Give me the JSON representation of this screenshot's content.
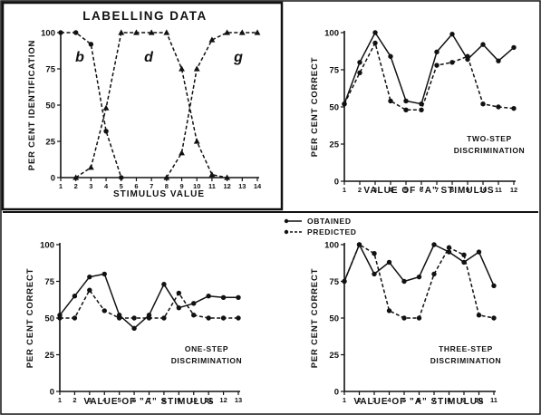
{
  "chart_data": [
    {
      "type": "line",
      "title": "LABELLING DATA",
      "xlabel": "STIMULUS VALUE",
      "ylabel": "PER CENT IDENTIFICATION",
      "x": [
        1,
        2,
        3,
        4,
        5,
        6,
        7,
        8,
        9,
        10,
        11,
        12,
        13,
        14
      ],
      "xticks": [
        "1",
        "2",
        "3",
        "4",
        "5",
        "6",
        "7",
        "8",
        "9",
        "10",
        "11",
        "12",
        "13",
        "14"
      ],
      "yticks": [
        "0",
        "25",
        "50",
        "75",
        "100"
      ],
      "xlim": [
        1,
        14
      ],
      "ylim": [
        0,
        100
      ],
      "regions": [
        "b",
        "d",
        "g"
      ],
      "series": [
        {
          "name": "b",
          "marker": "circle",
          "dash": "dashed",
          "points": [
            [
              1,
              100
            ],
            [
              2,
              100
            ],
            [
              3,
              92
            ],
            [
              4,
              32
            ],
            [
              5,
              0
            ]
          ]
        },
        {
          "name": "d",
          "marker": "triangle",
          "dash": "dashed",
          "points": [
            [
              2,
              0
            ],
            [
              3,
              7
            ],
            [
              4,
              48
            ],
            [
              5,
              100
            ],
            [
              6,
              100
            ],
            [
              7,
              100
            ],
            [
              8,
              100
            ],
            [
              9,
              75
            ],
            [
              10,
              25
            ],
            [
              11,
              2
            ],
            [
              12,
              0
            ]
          ]
        },
        {
          "name": "g",
          "marker": "triangle",
          "dash": "dashed",
          "points": [
            [
              8,
              0
            ],
            [
              9,
              17
            ],
            [
              10,
              75
            ],
            [
              11,
              95
            ],
            [
              12,
              100
            ],
            [
              13,
              100
            ],
            [
              14,
              100
            ]
          ]
        }
      ]
    },
    {
      "type": "line",
      "subtitle": "TWO-STEP DISCRIMINATION",
      "xlabel": "VALUE OF \"A\" STIMULUS",
      "ylabel": "PER CENT CORRECT",
      "x": [
        1,
        2,
        3,
        4,
        5,
        6,
        7,
        8,
        9,
        10,
        11,
        12
      ],
      "xticks": [
        "1",
        "2",
        "3",
        "4",
        "5",
        "6",
        "7",
        "8",
        "9",
        "10",
        "11",
        "12"
      ],
      "yticks": [
        "0",
        "25",
        "50",
        "75",
        "100"
      ],
      "xlim": [
        1,
        12
      ],
      "ylim": [
        0,
        100
      ],
      "series": [
        {
          "name": "OBTAINED",
          "values": [
            52,
            80,
            100,
            84,
            54,
            52,
            87,
            99,
            82,
            92,
            81,
            90
          ]
        },
        {
          "name": "PREDICTED",
          "values": [
            52,
            73,
            93,
            54,
            48,
            48,
            78,
            80,
            84,
            52,
            50,
            49
          ]
        }
      ]
    },
    {
      "type": "line",
      "subtitle": "ONE-STEP DISCRIMINATION",
      "xlabel": "VALUE OF \"A\" STIMULUS",
      "ylabel": "PER CENT CORRECT",
      "x": [
        1,
        2,
        3,
        4,
        5,
        6,
        7,
        8,
        9,
        10,
        11,
        12,
        13
      ],
      "xticks": [
        "1",
        "2",
        "3",
        "4",
        "5",
        "6",
        "7",
        "8",
        "9",
        "10",
        "11",
        "12",
        "13"
      ],
      "yticks": [
        "0",
        "25",
        "50",
        "75",
        "100"
      ],
      "xlim": [
        1,
        13
      ],
      "ylim": [
        0,
        100
      ],
      "series": [
        {
          "name": "OBTAINED",
          "values": [
            52,
            65,
            78,
            80,
            52,
            43,
            52,
            73,
            57,
            60,
            65,
            64,
            64
          ]
        },
        {
          "name": "PREDICTED",
          "values": [
            50,
            50,
            69,
            55,
            50,
            50,
            50,
            50,
            67,
            52,
            50,
            50,
            50
          ]
        }
      ]
    },
    {
      "type": "line",
      "subtitle": "THREE-STEP DISCRIMINATION",
      "xlabel": "VALUE OF \"A\" STIMULUS",
      "ylabel": "PER CENT CORRECT",
      "x": [
        1,
        2,
        3,
        4,
        5,
        6,
        7,
        8,
        9,
        10,
        11
      ],
      "xticks": [
        "1",
        "2",
        "3",
        "4",
        "5",
        "6",
        "7",
        "8",
        "9",
        "10",
        "11"
      ],
      "yticks": [
        "0",
        "25",
        "50",
        "75",
        "100"
      ],
      "xlim": [
        1,
        11
      ],
      "ylim": [
        0,
        100
      ],
      "series": [
        {
          "name": "OBTAINED",
          "values": [
            75,
            100,
            80,
            88,
            75,
            78,
            100,
            95,
            88,
            95,
            72
          ]
        },
        {
          "name": "PREDICTED",
          "values": [
            75,
            100,
            94,
            55,
            50,
            50,
            80,
            98,
            93,
            52,
            50
          ]
        }
      ]
    }
  ],
  "legend": {
    "obtained": "OBTAINED",
    "predicted": "PREDICTED"
  },
  "colors": {
    "ink": "#111111",
    "background": "#ffffff"
  }
}
